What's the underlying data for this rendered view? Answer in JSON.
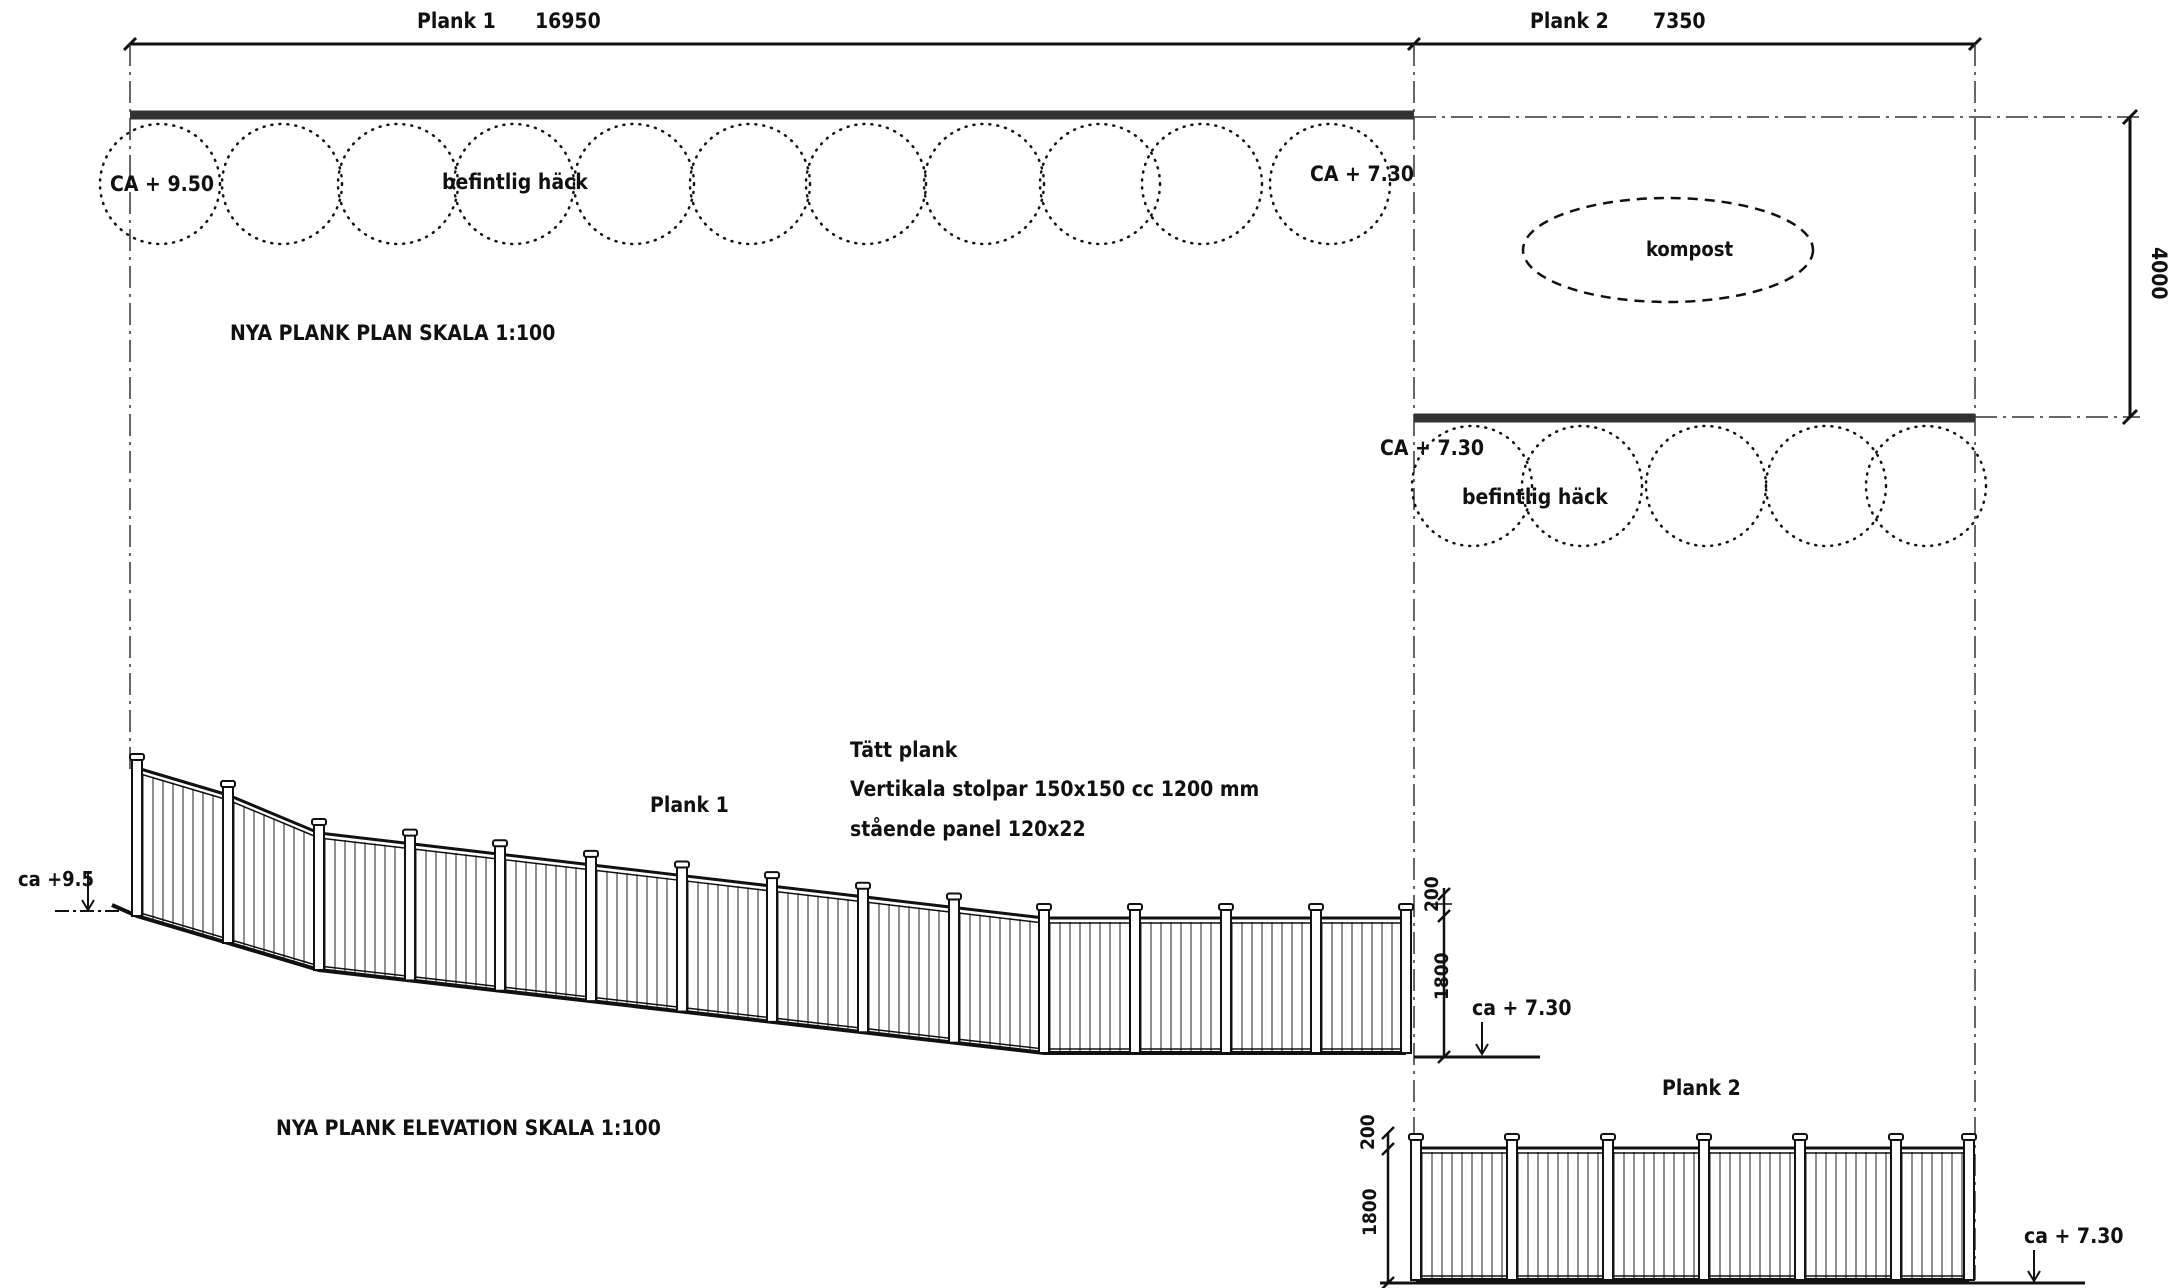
{
  "dimensions": {
    "plank1": {
      "name": "Plank 1",
      "length": "16950"
    },
    "plank2": {
      "name": "Plank 2",
      "length": "7350"
    },
    "depth": "4000"
  },
  "plan": {
    "title": "NYA PLANK   PLAN SKALA 1:100",
    "level_left": "CA + 9.50",
    "level_mid": "CA + 7.30",
    "level_lower": "CA + 7.30",
    "hedge_label_top": "befintlig häck",
    "hedge_label_bottom": "befintlig häck",
    "compost_label": "kompost"
  },
  "elevation": {
    "title": "NYA PLANK   ELEVATION   SKALA 1:100",
    "plank1_label": "Plank 1",
    "plank2_label": "Plank 2",
    "notes": [
      "Tätt plank",
      "Vertikala stolpar 150x150 cc 1200 mm",
      "stående panel 120x22"
    ],
    "level_left": "ca +9.5",
    "level_right": "ca + 7.30",
    "level_plank2": "ca + 7.30",
    "dim_top_rail": "200",
    "dim_height": "1800",
    "dim_top_rail_p2": "200",
    "dim_height_p2": "1800"
  }
}
